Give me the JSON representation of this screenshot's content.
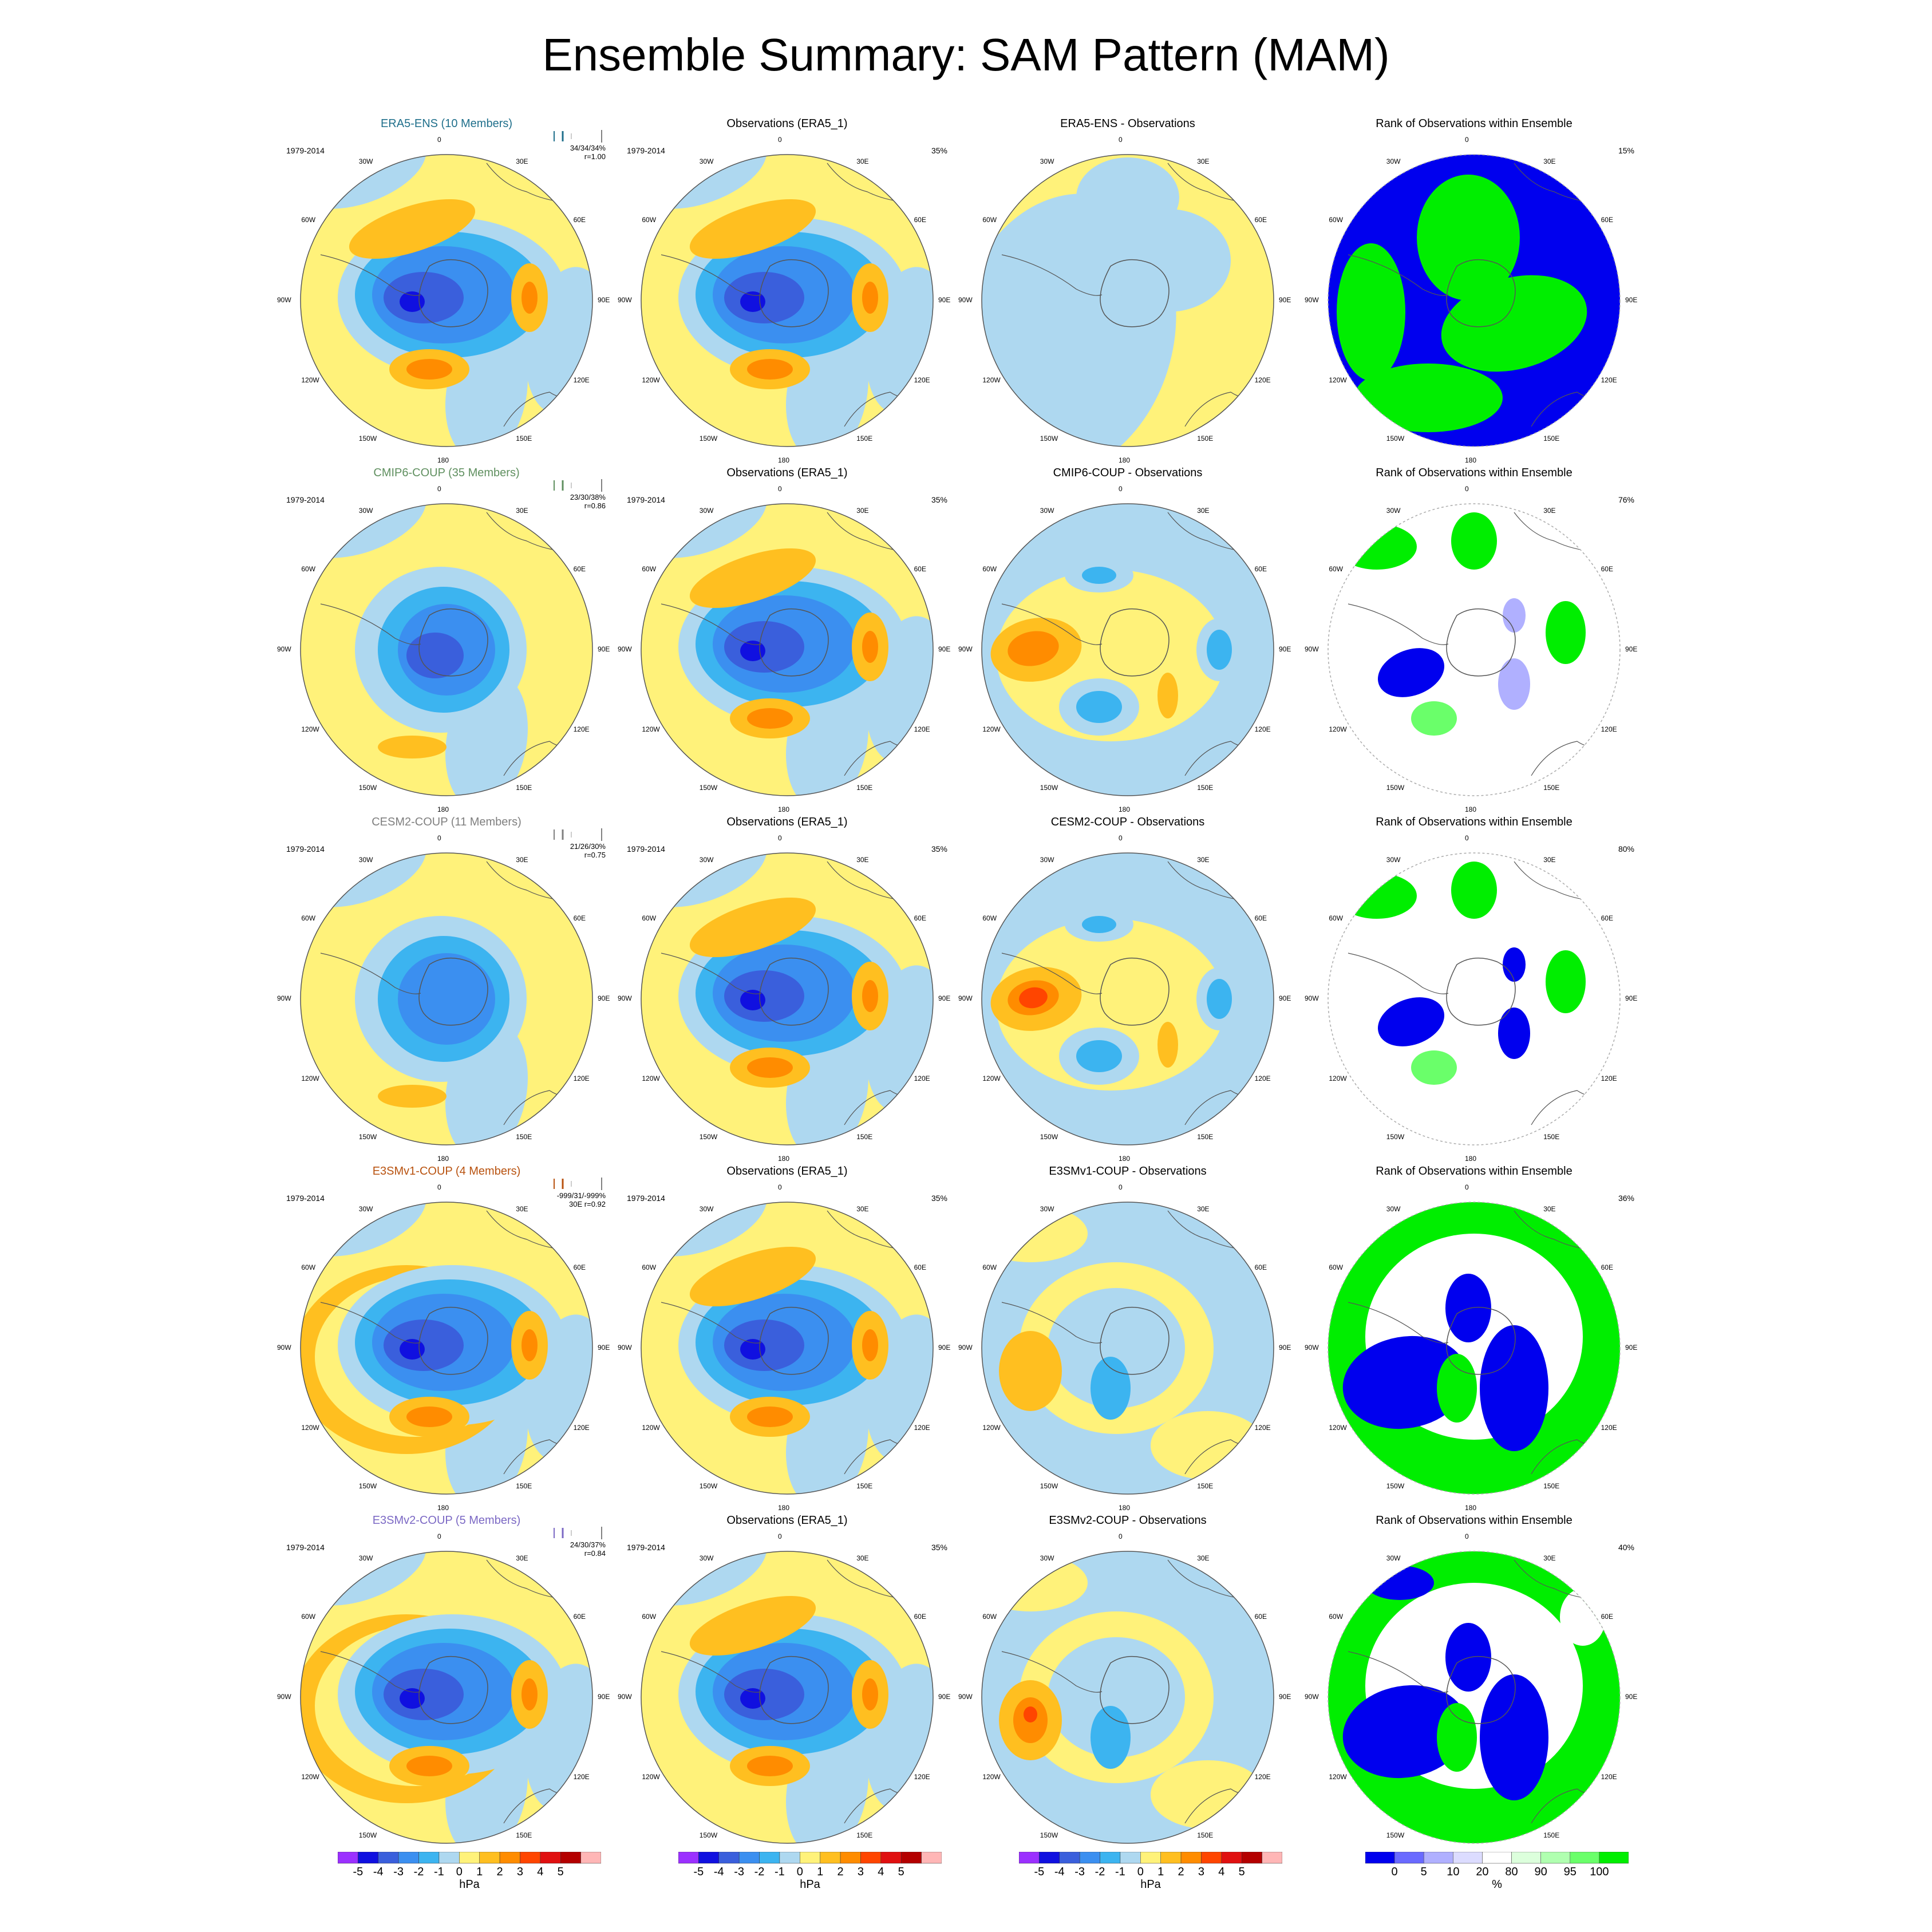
{
  "title": "Ensemble Summary: SAM Pattern (MAM)",
  "period": "1979-2014",
  "obs_title": "Observations (ERA5_1)",
  "obs_pct": "35%",
  "rank_title": "Rank of Observations within Ensemble",
  "longitude_labels": [
    "0",
    "30E",
    "60E",
    "90E",
    "120E",
    "150E",
    "180",
    "150W",
    "120W",
    "90W",
    "60W",
    "30W"
  ],
  "rows": [
    {
      "model_title": "ERA5-ENS (10 Members)",
      "model_color": "#1f6f8b",
      "stats1": "34/34/34%",
      "stats2": "r=1.00",
      "diff_title": "ERA5-ENS - Observations",
      "rank_pct": "15%",
      "whisker_color": "#1f6f8b"
    },
    {
      "model_title": "CMIP6-COUP (35 Members)",
      "model_color": "#5f8f5f",
      "stats1": "23/30/38%",
      "stats2": "r=0.86",
      "diff_title": "CMIP6-COUP - Observations",
      "rank_pct": "76%",
      "whisker_color": "#5f8f5f"
    },
    {
      "model_title": "CESM2-COUP (11 Members)",
      "model_color": "#7f7f7f",
      "stats1": "21/26/30%",
      "stats2": "r=0.75",
      "diff_title": "CESM2-COUP - Observations",
      "rank_pct": "80%",
      "whisker_color": "#7f7f7f"
    },
    {
      "model_title": "E3SMv1-COUP (4 Members)",
      "model_color": "#b8520f",
      "stats1": "-999/31/-999%",
      "stats2": "30E r=0.92",
      "diff_title": "E3SMv1-COUP - Observations",
      "rank_pct": "36%",
      "whisker_color": "#b8520f"
    },
    {
      "model_title": "E3SMv2-COUP (5 Members)",
      "model_color": "#7b68c4",
      "stats1": "24/30/37%",
      "stats2": "r=0.84",
      "diff_title": "E3SMv2-COUP - Observations",
      "rank_pct": "40%",
      "whisker_color": "#7b68c4"
    }
  ],
  "colorbar_hpa": {
    "unit": "hPa",
    "ticks": [
      "-5",
      "-4",
      "-3",
      "-2",
      "-1",
      "0",
      "1",
      "2",
      "3",
      "4",
      "5"
    ],
    "colors": [
      "#9b30ff",
      "#1010e0",
      "#3a5fdc",
      "#3b8ff0",
      "#3cb4f0",
      "#aed8f0",
      "#fff27a",
      "#ffbf20",
      "#ff8c00",
      "#ff4500",
      "#e01010",
      "#b40000",
      "#ffb6b6"
    ]
  },
  "colorbar_rank": {
    "unit": "%",
    "ticks": [
      "0",
      "5",
      "10",
      "20",
      "80",
      "90",
      "95",
      "100"
    ],
    "colors": [
      "#0000ee",
      "#6a6aff",
      "#b0b0ff",
      "#dcdcff",
      "#ffffff",
      "#dcffdc",
      "#b0ffb0",
      "#6aff6a",
      "#00ee00"
    ]
  }
}
